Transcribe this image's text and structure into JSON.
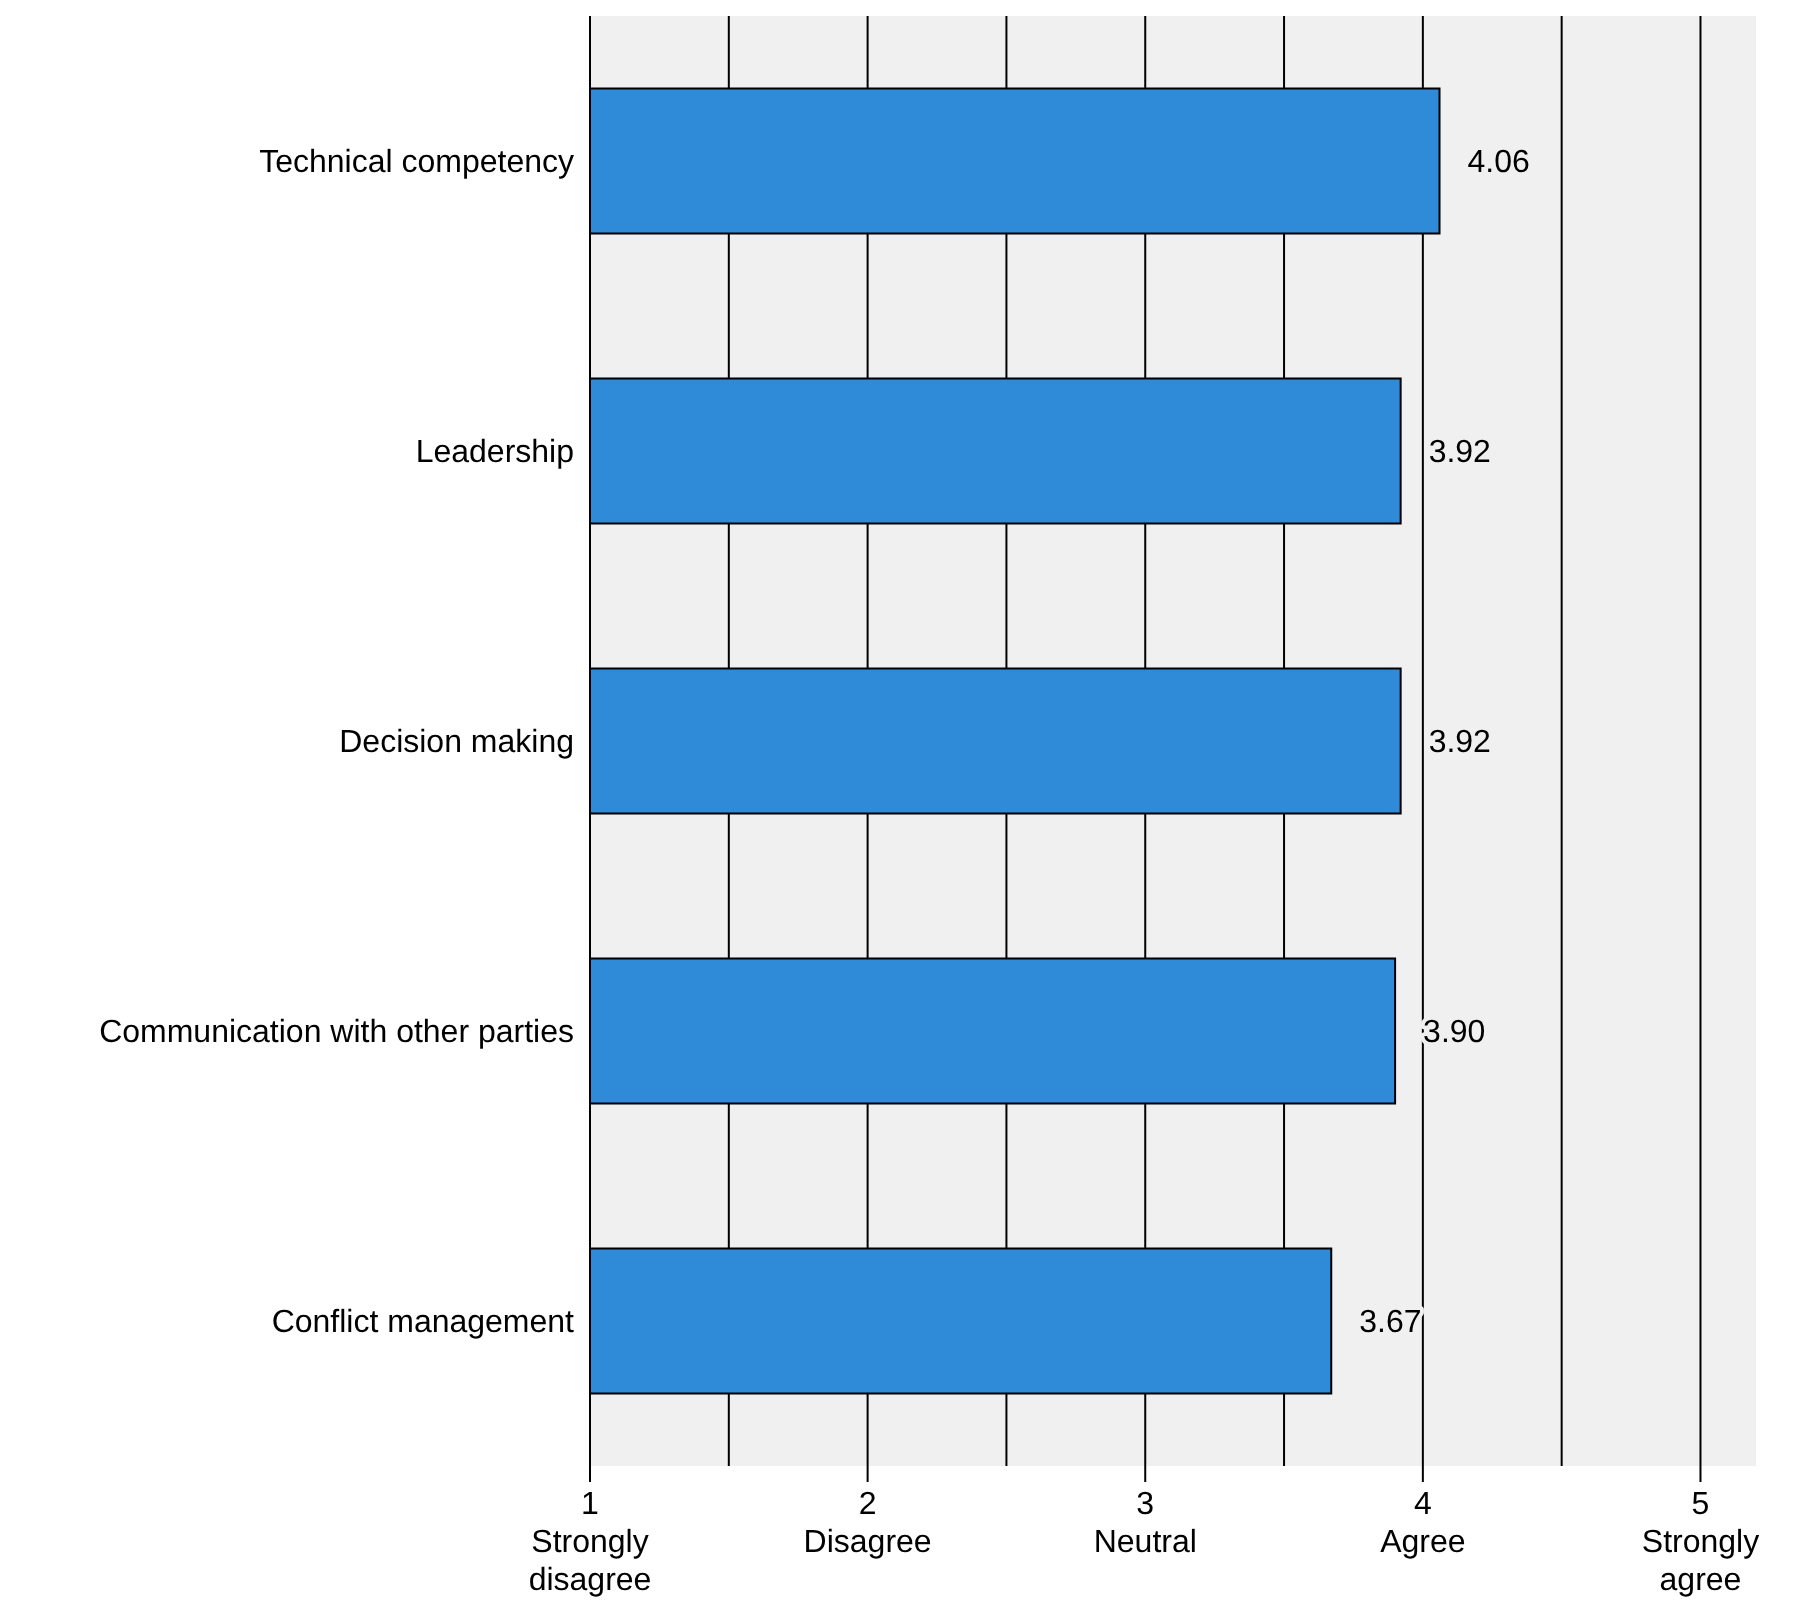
{
  "chart_data": {
    "type": "bar",
    "orientation": "horizontal",
    "categories": [
      "Technical competency",
      "Leadership",
      "Decision making",
      "Communication with other parties",
      "Conflict management"
    ],
    "values": [
      4.06,
      3.92,
      3.92,
      3.9,
      3.67
    ],
    "color": "#2f8ad8",
    "value_labels": [
      "4.06",
      "3.92",
      "3.92",
      "3.90",
      "3.67"
    ],
    "grid": "x",
    "xlim": [
      1,
      5.2
    ],
    "xticks": [
      {
        "value": 1,
        "label": "1\nStrongly\ndisagree"
      },
      {
        "value": 1.5,
        "label": null
      },
      {
        "value": 2,
        "label": "2\nDisagree"
      },
      {
        "value": 2.5,
        "label": null
      },
      {
        "value": 3,
        "label": "3\nNeutral"
      },
      {
        "value": 3.5,
        "label": null
      },
      {
        "value": 4,
        "label": "4\nAgree"
      },
      {
        "value": 4.5,
        "label": null
      },
      {
        "value": 5,
        "label": "5\nStrongly\nagree"
      }
    ]
  }
}
